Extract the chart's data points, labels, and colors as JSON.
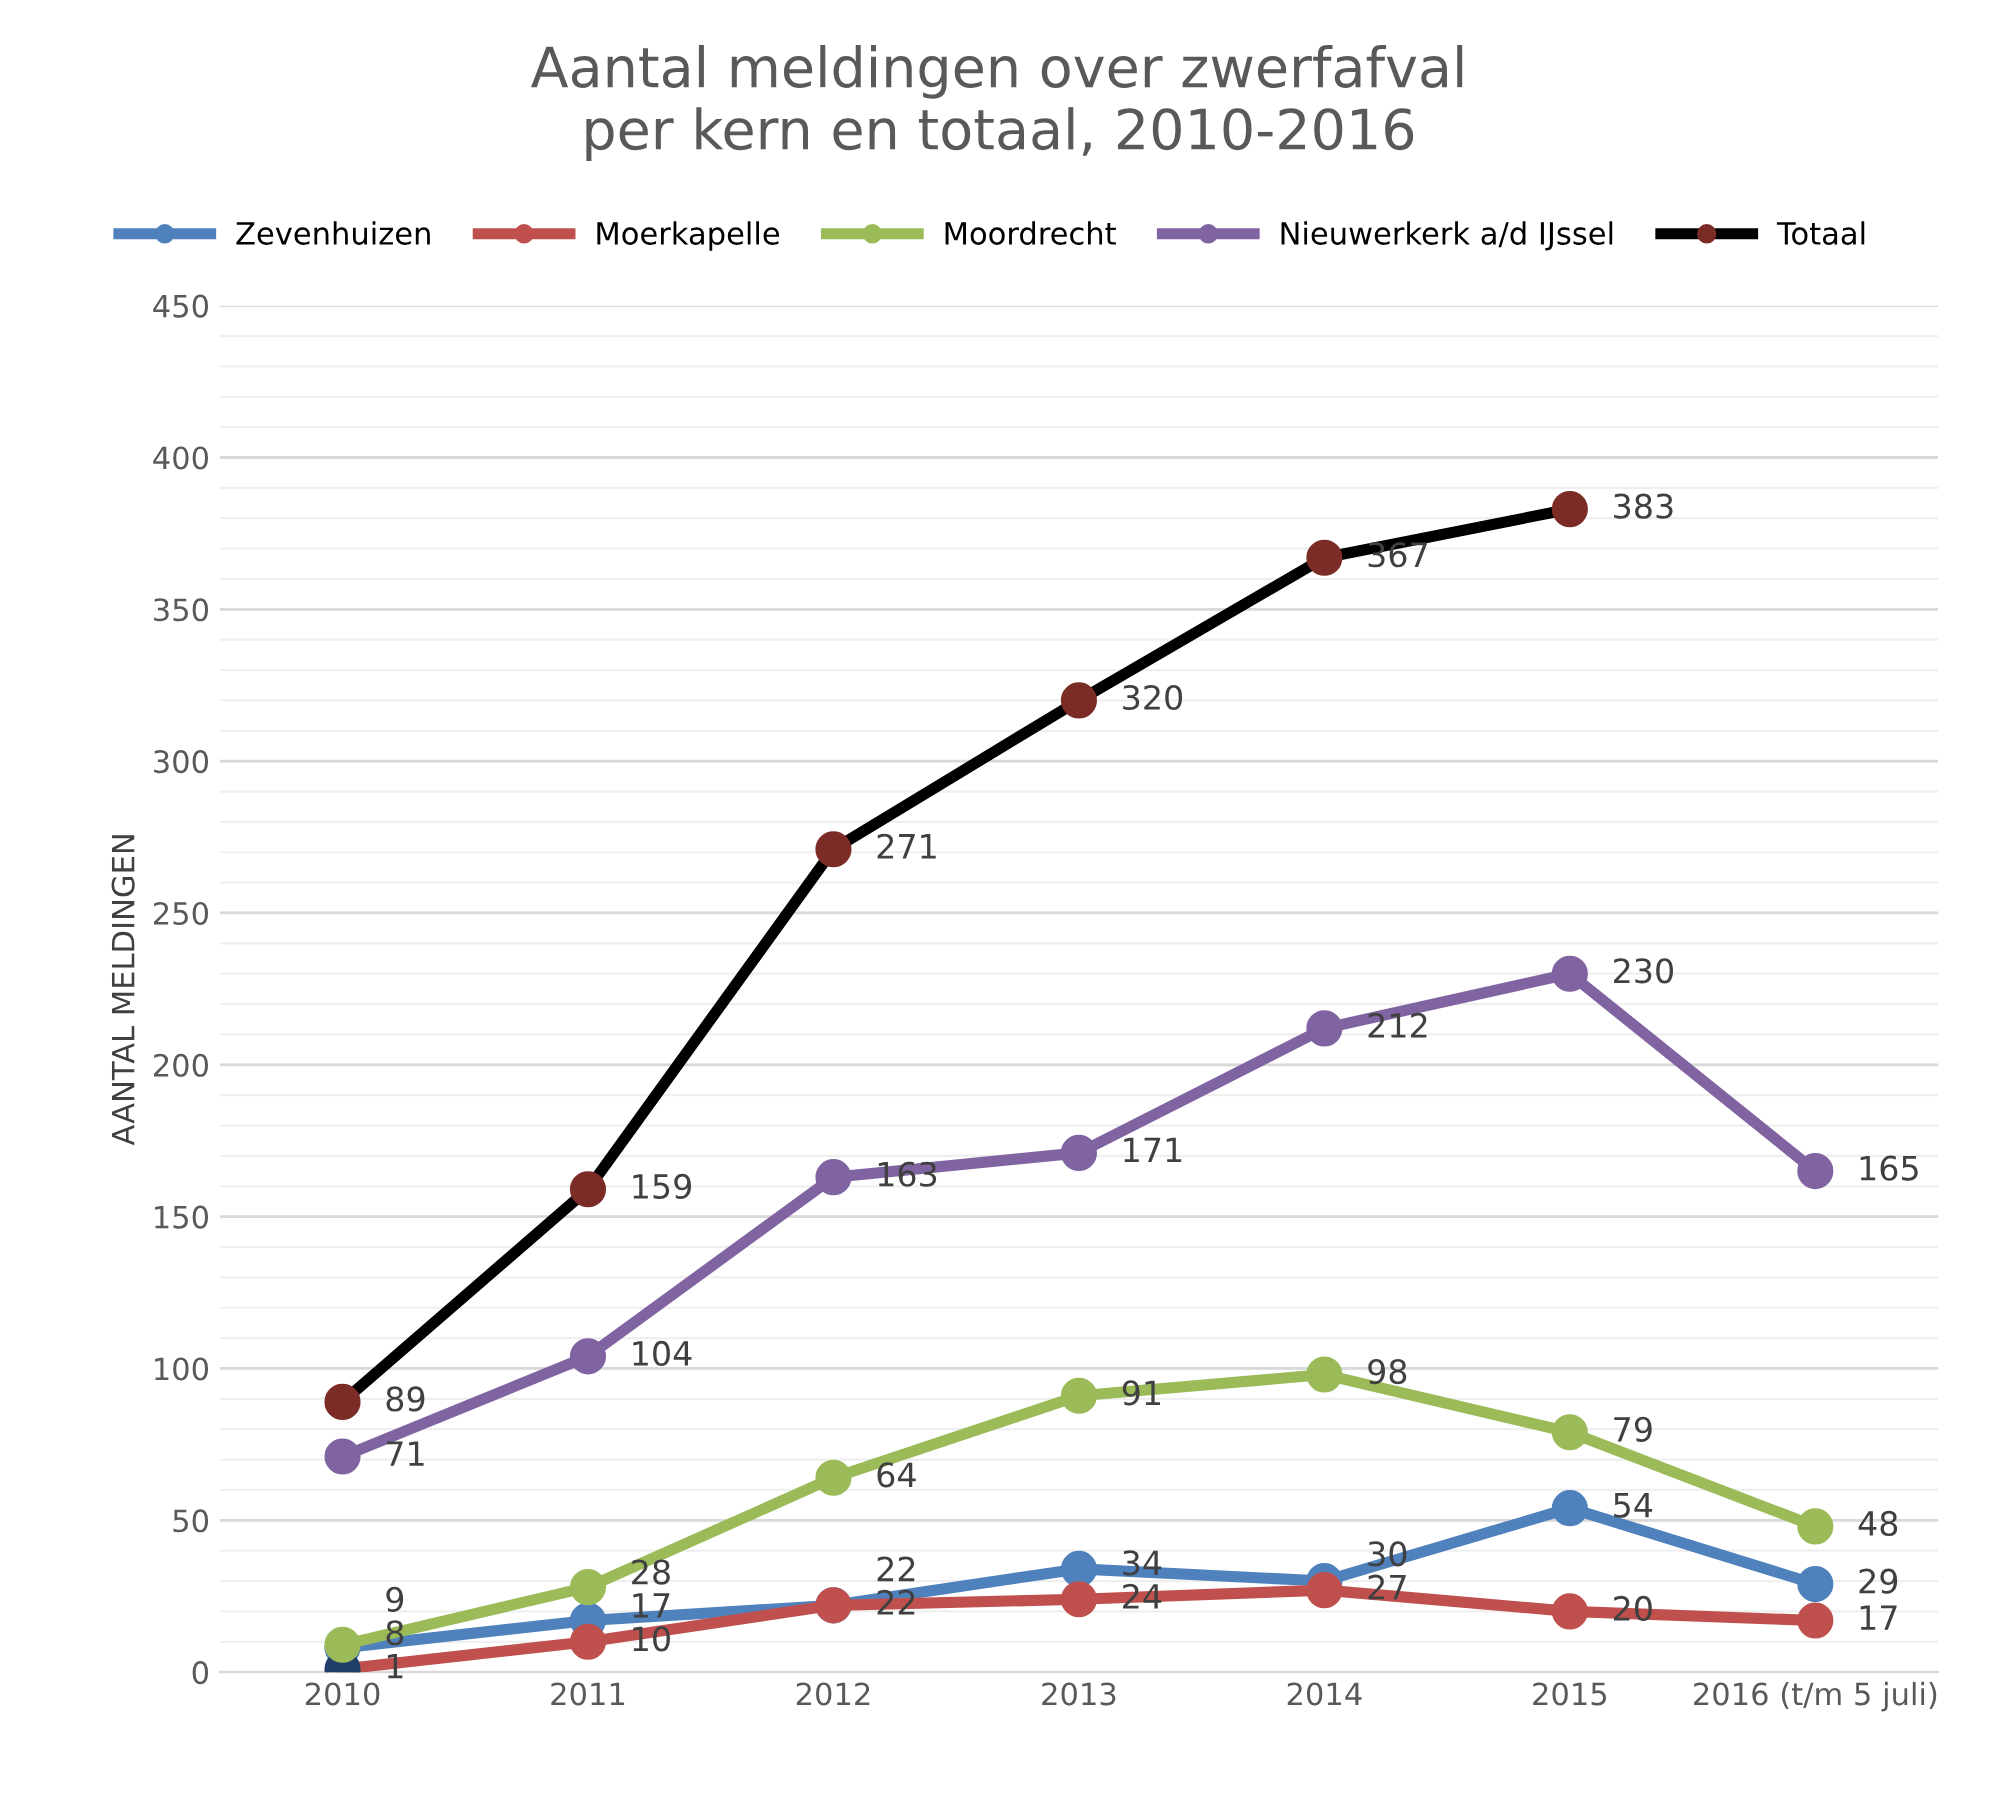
{
  "chart_data": {
    "type": "line",
    "title": "Aantal meldingen over zwerfafval\nper kern en totaal, 2010-2016",
    "ylabel": "AANTAL MELDINGEN",
    "categories": [
      "2010",
      "2011",
      "2012",
      "2013",
      "2014",
      "2015",
      "2016 (t/m 5 juli)"
    ],
    "series": [
      {
        "name": "Zevenhuizen",
        "color": "#4f81bd",
        "values": [
          8,
          17,
          22,
          34,
          30,
          54,
          29
        ]
      },
      {
        "name": "Moerkapelle",
        "color": "#c0504d",
        "colors": [
          "#1f3f6a",
          "#c0504d",
          "#c0504d",
          "#c0504d",
          "#c0504d",
          "#c0504d",
          "#c0504d"
        ],
        "values": [
          1,
          10,
          22,
          24,
          27,
          20,
          17
        ]
      },
      {
        "name": "Moordrecht",
        "color": "#9bbb59",
        "values": [
          9,
          28,
          64,
          91,
          98,
          79,
          48
        ]
      },
      {
        "name": "Nieuwerkerk a/d IJssel",
        "color": "#8064a2",
        "values": [
          71,
          104,
          163,
          171,
          212,
          230,
          165
        ]
      },
      {
        "name": "Totaal",
        "color": "#000000",
        "colors": [
          "#7b2c26",
          "#7b2c26",
          "#7b2c26",
          "#7b2c26",
          "#7b2c26",
          "#7b2c26",
          "#7b2c26"
        ],
        "values": [
          89,
          159,
          271,
          320,
          367,
          383,
          null
        ]
      }
    ],
    "ylim": [
      0,
      450
    ],
    "yticks": [
      0,
      50,
      100,
      150,
      200,
      250,
      300,
      350,
      400,
      450
    ],
    "grid": "y",
    "legend": "top",
    "marker": "circle",
    "line_style": "solid",
    "data_labels": true
  }
}
